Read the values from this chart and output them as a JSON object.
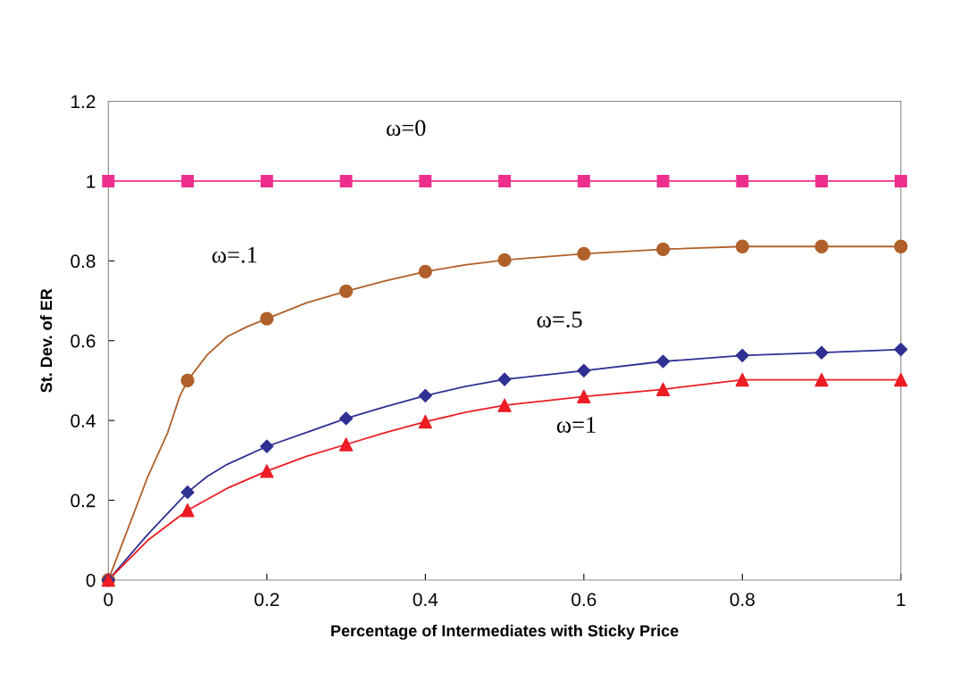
{
  "chart_data": {
    "type": "line",
    "xlabel": "Percentage of Intermediates with Sticky Price",
    "ylabel": "St. Dev. of ER",
    "xlim": [
      0,
      1
    ],
    "ylim": [
      0,
      1.2
    ],
    "xticks": [
      0,
      0.2,
      0.4,
      0.6,
      0.8,
      1
    ],
    "yticks": [
      0,
      0.2,
      0.4,
      0.6,
      0.8,
      1,
      1.2
    ],
    "grid": false,
    "legend": false,
    "series": [
      {
        "name": "ω=0",
        "color": "#ec2f8c",
        "marker": "square",
        "x": [
          0,
          0.1,
          0.2,
          0.3,
          0.4,
          0.5,
          0.6,
          0.7,
          0.8,
          0.9,
          1
        ],
        "values": [
          1,
          1,
          1,
          1,
          1,
          1,
          1,
          1,
          1,
          1,
          1
        ]
      },
      {
        "name": "ω=.1",
        "color": "#b0602a",
        "marker": "none",
        "x": [
          0,
          0.025,
          0.05,
          0.075,
          0.09,
          0.1,
          0.125,
          0.15,
          0.175,
          0.2,
          0.25,
          0.3,
          0.35,
          0.4,
          0.45,
          0.5,
          0.6,
          0.7,
          0.8,
          0.9,
          1
        ],
        "values": [
          0,
          0.13,
          0.26,
          0.37,
          0.46,
          0.5,
          0.565,
          0.61,
          0.635,
          0.655,
          0.695,
          0.724,
          0.75,
          0.773,
          0.79,
          0.802,
          0.818,
          0.829,
          0.836,
          0.836,
          0.836
        ]
      },
      {
        "type": "scatter",
        "color": "#b0602a",
        "marker": "circle",
        "x": [
          0,
          0.1,
          0.2,
          0.3,
          0.4,
          0.5,
          0.6,
          0.7,
          0.8,
          0.9,
          1
        ],
        "values": [
          0,
          0.5,
          0.655,
          0.724,
          0.773,
          0.802,
          0.818,
          0.829,
          0.836,
          0.836,
          0.836
        ]
      },
      {
        "name": "ω=.5",
        "color": "#2e3192",
        "marker": "none",
        "x": [
          0,
          0.05,
          0.1,
          0.125,
          0.15,
          0.2,
          0.25,
          0.3,
          0.35,
          0.4,
          0.45,
          0.5,
          0.6,
          0.7,
          0.8,
          0.9,
          1
        ],
        "values": [
          0,
          0.115,
          0.22,
          0.26,
          0.29,
          0.335,
          0.37,
          0.405,
          0.435,
          0.462,
          0.485,
          0.503,
          0.525,
          0.548,
          0.563,
          0.57,
          0.578
        ]
      },
      {
        "type": "scatter",
        "color": "#2e3192",
        "marker": "diamond",
        "x": [
          0,
          0.1,
          0.2,
          0.3,
          0.4,
          0.5,
          0.6,
          0.7,
          0.8,
          0.9,
          1
        ],
        "values": [
          0,
          0.22,
          0.335,
          0.405,
          0.462,
          0.503,
          0.525,
          0.548,
          0.563,
          0.57,
          0.578
        ]
      },
      {
        "name": "ω=1",
        "color": "#ed1c24",
        "marker": "none",
        "x": [
          0,
          0.05,
          0.1,
          0.15,
          0.2,
          0.25,
          0.3,
          0.35,
          0.4,
          0.45,
          0.5,
          0.6,
          0.7,
          0.8,
          0.9,
          1
        ],
        "values": [
          0,
          0.1,
          0.175,
          0.23,
          0.273,
          0.31,
          0.34,
          0.37,
          0.397,
          0.42,
          0.438,
          0.46,
          0.478,
          0.502,
          0.502,
          0.502
        ]
      },
      {
        "type": "scatter",
        "color": "#ed1c24",
        "marker": "triangle",
        "x": [
          0,
          0.1,
          0.2,
          0.3,
          0.4,
          0.5,
          0.6,
          0.7,
          0.8,
          0.9,
          1
        ],
        "values": [
          0,
          0.175,
          0.273,
          0.34,
          0.397,
          0.438,
          0.46,
          0.478,
          0.502,
          0.502,
          0.502
        ]
      }
    ]
  }
}
